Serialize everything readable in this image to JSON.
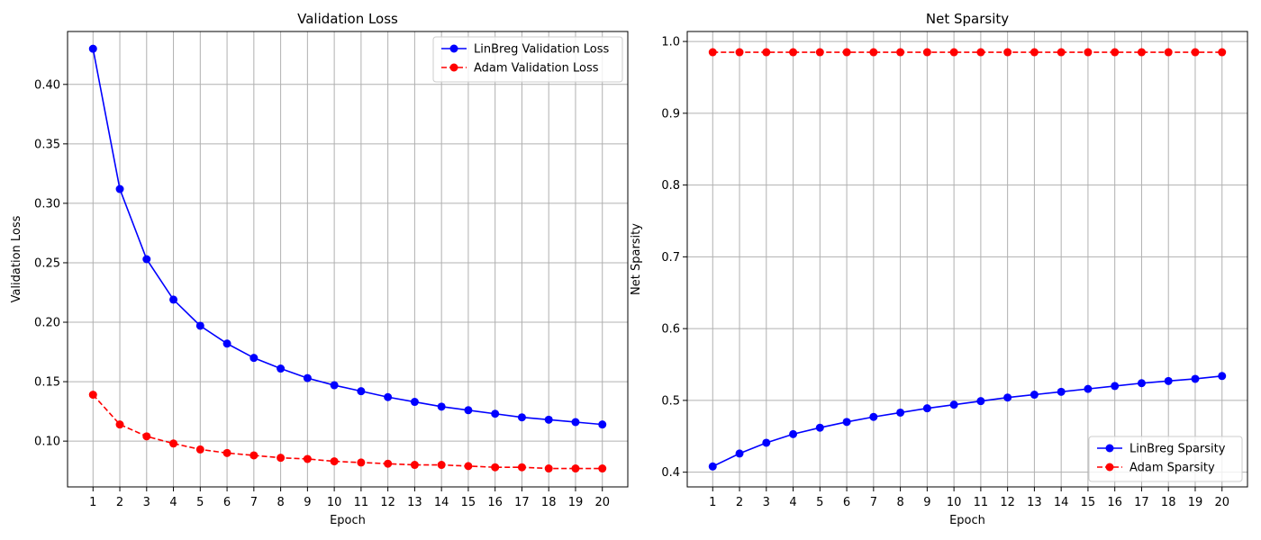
{
  "chart_data": [
    {
      "type": "line",
      "title": "Validation Loss",
      "xlabel": "Epoch",
      "ylabel": "Validation Loss",
      "x": [
        1,
        2,
        3,
        4,
        5,
        6,
        7,
        8,
        9,
        10,
        11,
        12,
        13,
        14,
        15,
        16,
        17,
        18,
        19,
        20
      ],
      "xticks": [
        "1",
        "2",
        "3",
        "4",
        "5",
        "6",
        "7",
        "8",
        "9",
        "10",
        "11",
        "12",
        "13",
        "14",
        "15",
        "16",
        "17",
        "18",
        "19",
        "20"
      ],
      "xlim": [
        0.05,
        20.95
      ],
      "ylim": [
        0.0615,
        0.4445
      ],
      "yticks": [
        0.1,
        0.15,
        0.2,
        0.25,
        0.3,
        0.35,
        0.4
      ],
      "ytick_labels": [
        "0.10",
        "0.15",
        "0.20",
        "0.25",
        "0.30",
        "0.35",
        "0.40"
      ],
      "grid": true,
      "legend_position": "top-right",
      "series": [
        {
          "name": "LinBreg Validation Loss",
          "color": "#0000ff",
          "dash": "solid",
          "values": [
            0.43,
            0.312,
            0.253,
            0.219,
            0.197,
            0.182,
            0.17,
            0.161,
            0.153,
            0.147,
            0.142,
            0.137,
            0.133,
            0.129,
            0.126,
            0.123,
            0.12,
            0.118,
            0.116,
            0.114
          ]
        },
        {
          "name": "Adam Validation Loss",
          "color": "#ff0000",
          "dash": "dashed",
          "values": [
            0.139,
            0.114,
            0.104,
            0.098,
            0.093,
            0.09,
            0.088,
            0.086,
            0.085,
            0.083,
            0.082,
            0.081,
            0.08,
            0.08,
            0.079,
            0.078,
            0.078,
            0.077,
            0.077,
            0.077
          ]
        }
      ]
    },
    {
      "type": "line",
      "title": "Net Sparsity",
      "xlabel": "Epoch",
      "ylabel": "Net Sparsity",
      "x": [
        1,
        2,
        3,
        4,
        5,
        6,
        7,
        8,
        9,
        10,
        11,
        12,
        13,
        14,
        15,
        16,
        17,
        18,
        19,
        20
      ],
      "xticks": [
        "1",
        "2",
        "3",
        "4",
        "5",
        "6",
        "7",
        "8",
        "9",
        "10",
        "11",
        "12",
        "13",
        "14",
        "15",
        "16",
        "17",
        "18",
        "19",
        "20"
      ],
      "xlim": [
        0.05,
        20.95
      ],
      "ylim": [
        0.3795,
        1.0139
      ],
      "yticks": [
        0.4,
        0.5,
        0.6,
        0.7,
        0.8,
        0.9,
        1.0
      ],
      "ytick_labels": [
        "0.4",
        "0.5",
        "0.6",
        "0.7",
        "0.8",
        "0.9",
        "1.0"
      ],
      "grid": true,
      "legend_position": "bottom-right",
      "series": [
        {
          "name": "LinBreg Sparsity",
          "color": "#0000ff",
          "dash": "solid",
          "values": [
            0.408,
            0.426,
            0.441,
            0.453,
            0.462,
            0.47,
            0.477,
            0.483,
            0.489,
            0.494,
            0.499,
            0.504,
            0.508,
            0.512,
            0.516,
            0.52,
            0.524,
            0.527,
            0.53,
            0.534
          ]
        },
        {
          "name": "Adam Sparsity",
          "color": "#ff0000",
          "dash": "dashed",
          "values": [
            0.985,
            0.985,
            0.985,
            0.985,
            0.985,
            0.985,
            0.985,
            0.985,
            0.985,
            0.985,
            0.985,
            0.985,
            0.985,
            0.985,
            0.985,
            0.985,
            0.985,
            0.985,
            0.985,
            0.985
          ]
        }
      ]
    }
  ]
}
